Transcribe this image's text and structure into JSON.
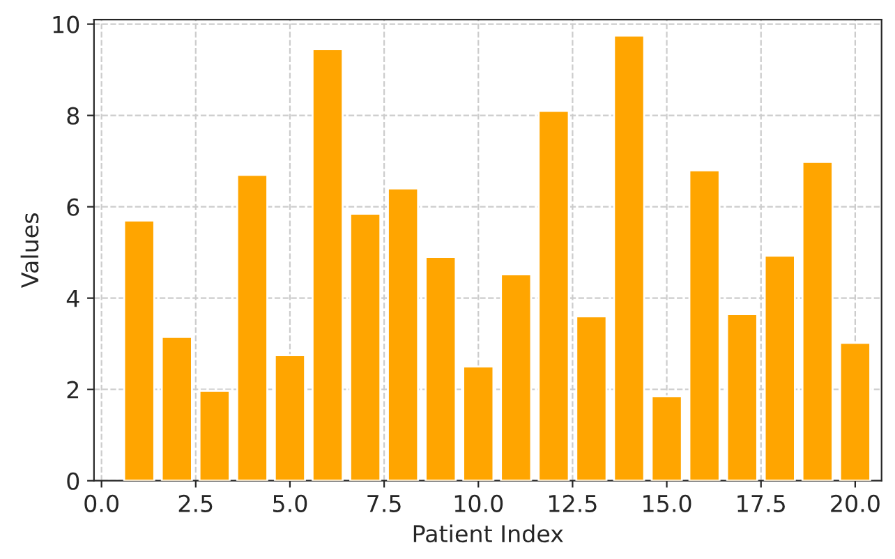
{
  "chart_data": {
    "type": "bar",
    "xlabel": "Patient Index",
    "ylabel": "Values",
    "x": [
      1,
      2,
      3,
      4,
      5,
      6,
      7,
      8,
      9,
      10,
      11,
      12,
      13,
      14,
      15,
      16,
      17,
      18,
      19,
      20
    ],
    "values": [
      5.7,
      3.15,
      1.97,
      6.7,
      2.75,
      9.45,
      5.85,
      6.4,
      4.9,
      2.5,
      4.52,
      8.1,
      3.6,
      9.75,
      1.85,
      6.8,
      3.65,
      4.93,
      6.98,
      3.02
    ],
    "color": "#ffa500",
    "xlim": [
      -0.2,
      20.7
    ],
    "xticks": [
      {
        "value": 0,
        "label": "0.0"
      },
      {
        "value": 2.5,
        "label": "2.5"
      },
      {
        "value": 5,
        "label": "5.0"
      },
      {
        "value": 7.5,
        "label": "7.5"
      },
      {
        "value": 10,
        "label": "10.0"
      },
      {
        "value": 12.5,
        "label": "12.5"
      },
      {
        "value": 15,
        "label": "15.0"
      },
      {
        "value": 17.5,
        "label": "17.5"
      },
      {
        "value": 20,
        "label": "20.0"
      }
    ],
    "ylim": [
      0,
      10.1
    ],
    "yticks": [
      0,
      2,
      4,
      6,
      8,
      10
    ],
    "grid": true
  }
}
